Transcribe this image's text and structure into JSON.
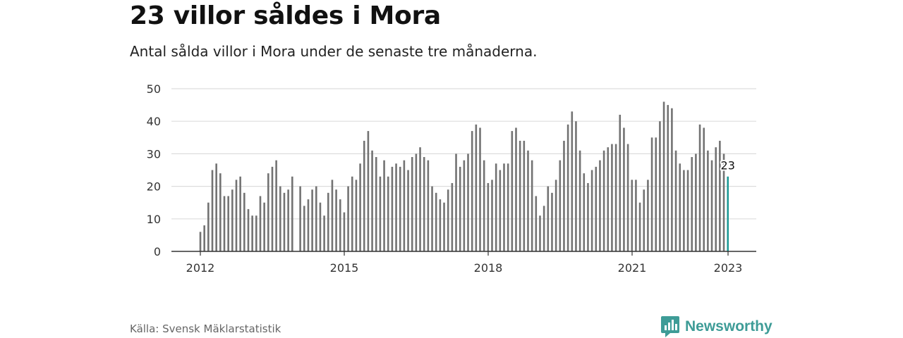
{
  "header": {
    "title": "23 villor såldes i Mora",
    "subtitle": "Antal sålda villor i Mora under de senaste tre månaderna."
  },
  "footer": {
    "source": "Källa: Svensk Mäklarstatistik",
    "brand": "Newsworthy"
  },
  "colors": {
    "bar": "#737373",
    "highlight": "#1f9a96",
    "grid": "#dddddd",
    "axis": "#333333",
    "brand": "#3e9c97"
  },
  "icons": {
    "brand_logo": "newsworthy-logo-icon"
  },
  "chart_data": {
    "type": "bar",
    "ylim": [
      0,
      50
    ],
    "yticks": [
      0,
      10,
      20,
      30,
      40,
      50
    ],
    "xticks": [
      {
        "label": "2012",
        "x": 2012.0
      },
      {
        "label": "2015",
        "x": 2015.0
      },
      {
        "label": "2018",
        "x": 2018.0
      },
      {
        "label": "2021",
        "x": 2021.0
      },
      {
        "label": "2023",
        "x": 2023.0
      }
    ],
    "x_start": 2012.0,
    "x_step": 0.0833,
    "values": [
      6,
      8,
      15,
      25,
      27,
      24,
      17,
      17,
      19,
      22,
      23,
      18,
      13,
      11,
      11,
      17,
      15,
      24,
      26,
      28,
      20,
      18,
      19,
      23,
      null,
      20,
      14,
      16,
      19,
      20,
      15,
      11,
      18,
      22,
      19,
      16,
      12,
      20,
      23,
      22,
      27,
      34,
      37,
      31,
      29,
      23,
      28,
      23,
      26,
      27,
      26,
      28,
      25,
      29,
      30,
      32,
      29,
      28,
      20,
      18,
      16,
      15,
      19,
      21,
      30,
      26,
      28,
      30,
      37,
      39,
      38,
      28,
      21,
      22,
      27,
      25,
      27,
      27,
      37,
      38,
      34,
      34,
      31,
      28,
      17,
      11,
      14,
      20,
      18,
      22,
      28,
      34,
      39,
      43,
      40,
      31,
      24,
      21,
      25,
      26,
      28,
      31,
      32,
      33,
      33,
      42,
      38,
      33,
      22,
      22,
      15,
      19,
      22,
      35,
      35,
      40,
      46,
      45,
      44,
      31,
      27,
      25,
      25,
      29,
      30,
      39,
      38,
      31,
      28,
      32,
      34,
      30,
      23
    ],
    "highlight_index": 132,
    "annotation": {
      "text": "23",
      "index": 132
    }
  }
}
